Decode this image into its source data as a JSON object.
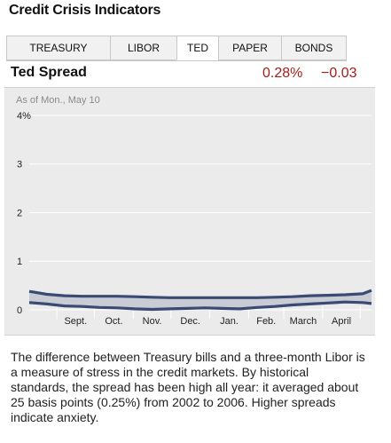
{
  "title": "Credit Crisis Indicators",
  "tabs": [
    {
      "label": "TREASURY",
      "active": false
    },
    {
      "label": "LIBOR",
      "active": false
    },
    {
      "label": "TED",
      "active": true
    },
    {
      "label": "PAPER",
      "active": false
    },
    {
      "label": "BONDS",
      "active": false
    }
  ],
  "indicator": {
    "name": "Ted Spread",
    "value": "0.28%",
    "change": "−0.03"
  },
  "as_of": "As of Mon., May 10",
  "description": "The difference between Treasury bills and a three-month Libor is a measure of stress in the credit markets. By historical standards, the spread has been high all year: it averaged about 25 basis points (0.25%) from 2002 to 2006. Higher spreads indicate anxiety.",
  "colors": {
    "line": "#3a4a72",
    "fill": "#c9ccd4",
    "value_text": "#a61c1c",
    "grid": "#ffffff",
    "background": "#ebebeb"
  },
  "chart_data": {
    "type": "area",
    "ytick_labels": [
      "0",
      "1",
      "2",
      "3",
      "4%"
    ],
    "yticks": [
      0,
      1,
      2,
      3,
      4
    ],
    "ylim": [
      0,
      4.2
    ],
    "xtick_labels": [
      "Sept.",
      "Oct.",
      "Nov.",
      "Dec.",
      "Jan.",
      "Feb.",
      "March",
      "April"
    ],
    "x": [
      "2009-08-10",
      "2009-08-24",
      "2009-09-07",
      "2009-09-21",
      "2009-10-05",
      "2009-10-19",
      "2009-11-02",
      "2009-11-16",
      "2009-11-30",
      "2009-12-14",
      "2009-12-28",
      "2010-01-11",
      "2010-01-25",
      "2010-02-08",
      "2010-02-22",
      "2010-03-08",
      "2010-03-22",
      "2010-04-05",
      "2010-04-19",
      "2010-05-03",
      "2010-05-10"
    ],
    "series": [
      {
        "name": "",
        "values": [
          0.38,
          0.32,
          0.29,
          0.28,
          0.28,
          0.28,
          0.27,
          0.26,
          0.25,
          0.25,
          0.25,
          0.25,
          0.25,
          0.25,
          0.26,
          0.27,
          0.29,
          0.3,
          0.31,
          0.33,
          0.4
        ]
      },
      {
        "name": "",
        "values": [
          0.15,
          0.12,
          0.08,
          0.07,
          0.05,
          0.04,
          0.02,
          0.01,
          0.02,
          0.03,
          0.04,
          0.03,
          0.02,
          0.05,
          0.07,
          0.1,
          0.12,
          0.14,
          0.16,
          0.15,
          0.13
        ]
      }
    ]
  }
}
